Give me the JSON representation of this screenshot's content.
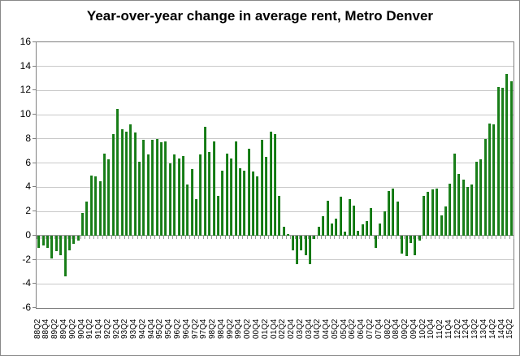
{
  "title": "Year-over-year change in average rent, Metro Denver",
  "chart_data": {
    "type": "bar",
    "title": "Year-over-year change in average rent, Metro Denver",
    "xlabel": "",
    "ylabel": "",
    "ylim": [
      -6,
      16
    ],
    "ytick_step": 2,
    "y_tick_labels": [
      "16",
      "14",
      "12",
      "10",
      "8",
      "6",
      "4",
      "2",
      "0",
      "-2",
      "-4",
      "-6"
    ],
    "x_label_interval": 2,
    "x_tick_labels": [
      "88Q2",
      "88Q4",
      "89Q2",
      "89Q4",
      "90Q2",
      "90Q4",
      "91Q2",
      "91Q4",
      "92Q2",
      "92Q4",
      "93Q2",
      "93Q4",
      "94Q2",
      "94Q4",
      "95Q2",
      "95Q4",
      "96Q2",
      "96Q4",
      "97Q2",
      "97Q4",
      "98Q2",
      "98Q4",
      "99Q2",
      "99Q4",
      "00Q2",
      "00Q4",
      "01Q2",
      "01Q4",
      "02Q2",
      "02Q4",
      "03Q2",
      "03Q4",
      "04Q2",
      "04Q4",
      "05Q2",
      "05Q4",
      "06Q2",
      "06Q4",
      "07Q2",
      "07Q4",
      "08Q2",
      "08Q4",
      "09Q2",
      "09Q4",
      "10Q2",
      "10Q4",
      "11Q2",
      "11Q4",
      "12Q2",
      "12Q4",
      "13Q2",
      "13Q4",
      "14Q2",
      "14Q4",
      "15Q2"
    ],
    "grid": "on",
    "legend": "none",
    "bar_color": "#0c730c",
    "gridline_color": "#c9c9c9",
    "axis_color": "#808080",
    "categories": [
      "88Q2",
      "88Q3",
      "88Q4",
      "89Q1",
      "89Q2",
      "89Q3",
      "89Q4",
      "90Q1",
      "90Q2",
      "90Q3",
      "90Q4",
      "91Q1",
      "91Q2",
      "91Q3",
      "91Q4",
      "92Q1",
      "92Q2",
      "92Q3",
      "92Q4",
      "93Q1",
      "93Q2",
      "93Q3",
      "93Q4",
      "94Q1",
      "94Q2",
      "94Q3",
      "94Q4",
      "95Q1",
      "95Q2",
      "95Q3",
      "95Q4",
      "96Q1",
      "96Q2",
      "96Q3",
      "96Q4",
      "97Q1",
      "97Q2",
      "97Q3",
      "97Q4",
      "98Q1",
      "98Q2",
      "98Q3",
      "98Q4",
      "99Q1",
      "99Q2",
      "99Q3",
      "99Q4",
      "00Q1",
      "00Q2",
      "00Q3",
      "00Q4",
      "01Q1",
      "01Q2",
      "01Q3",
      "01Q4",
      "02Q1",
      "02Q2",
      "02Q3",
      "02Q4",
      "03Q1",
      "03Q2",
      "03Q3",
      "03Q4",
      "04Q1",
      "04Q2",
      "04Q3",
      "04Q4",
      "05Q1",
      "05Q2",
      "05Q3",
      "05Q4",
      "06Q1",
      "06Q2",
      "06Q3",
      "06Q4",
      "07Q1",
      "07Q2",
      "07Q3",
      "07Q4",
      "08Q1",
      "08Q2",
      "08Q3",
      "08Q4",
      "09Q1",
      "09Q2",
      "09Q3",
      "09Q4",
      "10Q1",
      "10Q2",
      "10Q3",
      "10Q4",
      "11Q1",
      "11Q2",
      "11Q3",
      "11Q4",
      "12Q1",
      "12Q2",
      "12Q3",
      "12Q4",
      "13Q1",
      "13Q2",
      "13Q3",
      "13Q4",
      "14Q1",
      "14Q2",
      "14Q3",
      "14Q4",
      "15Q1",
      "15Q2"
    ],
    "values": [
      -1.0,
      -0.8,
      -1.0,
      -1.9,
      -1.3,
      -1.6,
      -3.4,
      -1.2,
      -0.7,
      -0.4,
      1.9,
      2.8,
      5.0,
      4.9,
      4.5,
      6.8,
      6.3,
      8.4,
      10.5,
      8.8,
      8.6,
      9.2,
      8.5,
      6.1,
      7.9,
      6.7,
      7.9,
      8.0,
      7.7,
      7.8,
      6.0,
      6.7,
      6.4,
      6.6,
      4.2,
      5.5,
      3.0,
      6.7,
      9.0,
      6.9,
      7.8,
      3.3,
      5.4,
      6.8,
      6.4,
      7.8,
      5.6,
      5.4,
      7.2,
      5.3,
      4.9,
      7.9,
      6.5,
      8.6,
      8.4,
      3.3,
      0.7,
      0.1,
      -1.2,
      -2.4,
      -1.2,
      -1.6,
      -2.4,
      -0.3,
      0.7,
      1.6,
      2.9,
      1.0,
      1.4,
      3.2,
      0.3,
      3.0,
      2.5,
      0.4,
      0.9,
      1.2,
      2.3,
      -1.0,
      1.0,
      2.0,
      3.7,
      3.9,
      2.8,
      -1.5,
      -1.7,
      -0.6,
      -1.6,
      -0.4,
      3.3,
      3.6,
      3.8,
      3.9,
      1.7,
      2.4,
      4.3,
      6.8,
      5.1,
      4.6,
      4.0,
      4.2,
      6.1,
      6.3,
      8.0,
      9.3,
      9.2,
      12.3,
      12.2,
      13.4,
      12.8
    ]
  }
}
